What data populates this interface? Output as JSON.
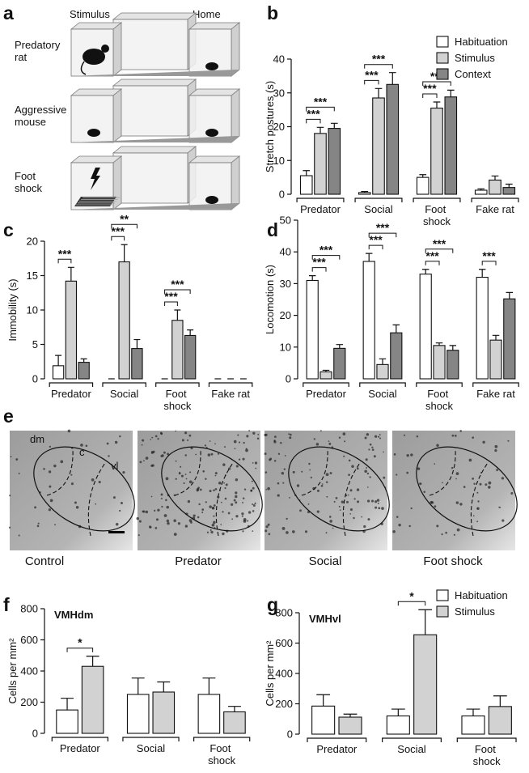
{
  "panel_labels": [
    "a",
    "b",
    "c",
    "d",
    "e",
    "f",
    "g"
  ],
  "panel_a": {
    "column_labels": [
      "Stimulus",
      "Home"
    ],
    "row_labels": [
      "Predatory rat",
      "Aggressive mouse",
      "Foot shock"
    ]
  },
  "panel_e": {
    "region_labels": [
      "dm",
      "c",
      "vl"
    ],
    "captions": [
      "Control",
      "Predator",
      "Social",
      "Foot shock"
    ]
  },
  "chart_data": [
    {
      "type": "bar",
      "ylabel": "Stretch postures (s)",
      "categories": [
        "Predator",
        "Social",
        "Foot shock",
        "Fake rat"
      ],
      "series": [
        {
          "name": "Habituation",
          "color": "#ffffff",
          "values": [
            5.5,
            0.5,
            5,
            1.2
          ],
          "errors": [
            1.5,
            0.3,
            0.8,
            0.4
          ]
        },
        {
          "name": "Stimulus",
          "color": "#d2d2d2",
          "values": [
            18,
            28.5,
            25.5,
            4.2
          ],
          "errors": [
            1.8,
            2.8,
            1.8,
            1.2
          ]
        },
        {
          "name": "Context",
          "color": "#858585",
          "values": [
            19.5,
            32.5,
            28.8,
            2
          ],
          "errors": [
            1.5,
            3.5,
            2,
            1
          ]
        }
      ],
      "ylim": [
        0,
        40
      ],
      "yticks": [
        0,
        10,
        20,
        30,
        40
      ],
      "legend": "upper right",
      "annotations": [
        {
          "category": 0,
          "series": [
            0,
            1
          ],
          "label": "***"
        },
        {
          "category": 0,
          "series": [
            0,
            2
          ],
          "label": "***"
        },
        {
          "category": 1,
          "series": [
            0,
            1
          ],
          "label": "***"
        },
        {
          "category": 1,
          "series": [
            0,
            2
          ],
          "label": "***"
        },
        {
          "category": 2,
          "series": [
            0,
            1
          ],
          "label": "***"
        },
        {
          "category": 2,
          "series": [
            0,
            2
          ],
          "label": "***"
        }
      ]
    },
    {
      "type": "bar",
      "ylabel": "Immobility (s)",
      "categories": [
        "Predator",
        "Social",
        "Foot shock",
        "Fake rat"
      ],
      "series": [
        {
          "name": "Habituation",
          "color": "#ffffff",
          "values": [
            1.9,
            0,
            0,
            0
          ],
          "errors": [
            1.5,
            0,
            0,
            0
          ]
        },
        {
          "name": "Stimulus",
          "color": "#d2d2d2",
          "values": [
            14.2,
            17,
            8.5,
            0
          ],
          "errors": [
            2,
            2.5,
            1.5,
            0
          ]
        },
        {
          "name": "Context",
          "color": "#858585",
          "values": [
            2.4,
            4.4,
            6.3,
            0
          ],
          "errors": [
            0.5,
            1.3,
            0.8,
            0
          ]
        }
      ],
      "ylim": [
        0,
        20
      ],
      "yticks": [
        0,
        5,
        10,
        15,
        20
      ],
      "annotations": [
        {
          "category": 0,
          "series": [
            0,
            1
          ],
          "label": "***"
        },
        {
          "category": 1,
          "series": [
            0,
            1
          ],
          "label": "***"
        },
        {
          "category": 1,
          "series": [
            0,
            2
          ],
          "label": "**"
        },
        {
          "category": 2,
          "series": [
            0,
            1
          ],
          "label": "***"
        },
        {
          "category": 2,
          "series": [
            0,
            2
          ],
          "label": "***"
        }
      ]
    },
    {
      "type": "bar",
      "ylabel": "Locomotion (s)",
      "categories": [
        "Predator",
        "Social",
        "Foot shock",
        "Fake rat"
      ],
      "series": [
        {
          "name": "Habituation",
          "color": "#ffffff",
          "values": [
            31,
            37,
            33,
            32
          ],
          "errors": [
            1.5,
            2.5,
            1.5,
            2.5
          ]
        },
        {
          "name": "Stimulus",
          "color": "#d2d2d2",
          "values": [
            2.2,
            4.5,
            10.5,
            12.2
          ],
          "errors": [
            0.5,
            1.8,
            0.8,
            1.5
          ]
        },
        {
          "name": "Context",
          "color": "#858585",
          "values": [
            9.6,
            14.5,
            9,
            25.2
          ],
          "errors": [
            1.2,
            2.5,
            1.5,
            2
          ]
        }
      ],
      "ylim": [
        0,
        50
      ],
      "yticks": [
        0,
        10,
        20,
        30,
        40,
        50
      ],
      "annotations": [
        {
          "category": 0,
          "series": [
            0,
            1
          ],
          "label": "***"
        },
        {
          "category": 0,
          "series": [
            0,
            2
          ],
          "label": "***"
        },
        {
          "category": 1,
          "series": [
            0,
            1
          ],
          "label": "***"
        },
        {
          "category": 1,
          "series": [
            0,
            2
          ],
          "label": "***"
        },
        {
          "category": 2,
          "series": [
            0,
            1
          ],
          "label": "***"
        },
        {
          "category": 2,
          "series": [
            0,
            2
          ],
          "label": "***"
        },
        {
          "category": 3,
          "series": [
            0,
            1
          ],
          "label": "***"
        }
      ]
    },
    {
      "type": "bar",
      "title": "VMHdm",
      "ylabel": "Cells per mm²",
      "categories": [
        "Predator",
        "Social",
        "Foot shock"
      ],
      "series": [
        {
          "name": "Habituation",
          "color": "#ffffff",
          "values": [
            150,
            250,
            250
          ],
          "errors": [
            75,
            105,
            105
          ]
        },
        {
          "name": "Stimulus",
          "color": "#d2d2d2",
          "values": [
            430,
            265,
            138
          ],
          "errors": [
            65,
            65,
            35
          ]
        }
      ],
      "ylim": [
        0,
        800
      ],
      "yticks": [
        0,
        200,
        400,
        600,
        800
      ],
      "annotations": [
        {
          "category": 0,
          "series": [
            0,
            1
          ],
          "label": "*"
        }
      ]
    },
    {
      "type": "bar",
      "title": "VMHvl",
      "ylabel": "Cells per mm²",
      "categories": [
        "Predator",
        "Social",
        "Foot shock"
      ],
      "series": [
        {
          "name": "Habituation",
          "color": "#ffffff",
          "values": [
            185,
            120,
            120
          ],
          "errors": [
            75,
            45,
            45
          ]
        },
        {
          "name": "Stimulus",
          "color": "#d2d2d2",
          "values": [
            112,
            655,
            182
          ],
          "errors": [
            20,
            165,
            70
          ]
        }
      ],
      "ylim": [
        0,
        800
      ],
      "yticks": [
        0,
        200,
        400,
        600,
        800
      ],
      "legend": "upper right",
      "annotations": [
        {
          "category": 1,
          "series": [
            0,
            1
          ],
          "label": "*"
        }
      ]
    }
  ]
}
